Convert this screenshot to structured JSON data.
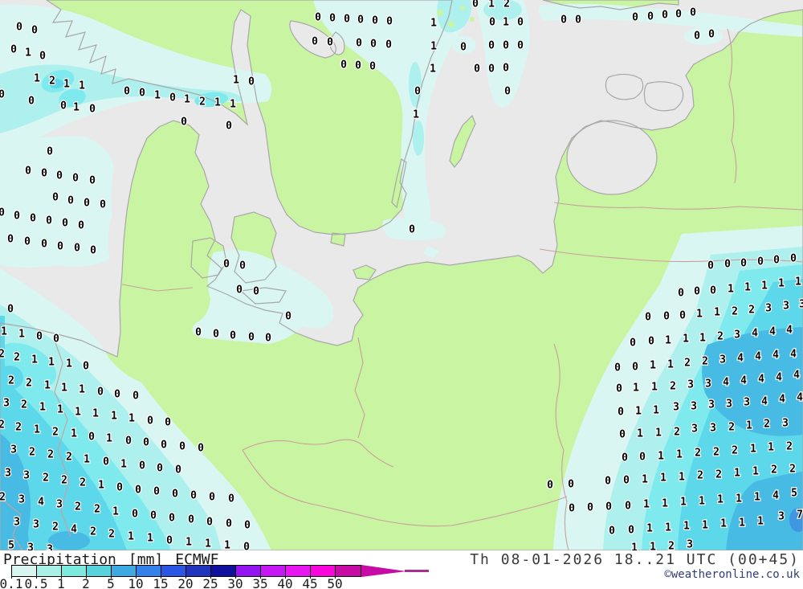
{
  "map": {
    "sea_color": "#e9e9e9",
    "land_color": "#c9f4a1",
    "coast_color": "#a8a8a8",
    "border_color": "#c9a0a0",
    "precip_levels": [
      {
        "range": "0.1-0.5",
        "color": "#d9f6f2"
      },
      {
        "range": "0.5-1",
        "color": "#aef0ee"
      },
      {
        "range": "1-2",
        "color": "#7feaee"
      },
      {
        "range": "2-5",
        "color": "#5cd8ea"
      },
      {
        "range": "5-10",
        "color": "#47bbe4"
      },
      {
        "range": "10-15",
        "color": "#3f96e2"
      }
    ],
    "values": [
      [
        24,
        33,
        "0"
      ],
      [
        43,
        37,
        "0"
      ],
      [
        17,
        61,
        "0"
      ],
      [
        35,
        65,
        "1"
      ],
      [
        53,
        69,
        "0"
      ],
      [
        46,
        97,
        "1"
      ],
      [
        65,
        100,
        "2"
      ],
      [
        83,
        104,
        "1"
      ],
      [
        102,
        106,
        "1"
      ],
      [
        294,
        99,
        "1"
      ],
      [
        313,
        101,
        "0"
      ],
      [
        2,
        117,
        "0"
      ],
      [
        39,
        125,
        "0"
      ],
      [
        79,
        131,
        "0"
      ],
      [
        95,
        133,
        "1"
      ],
      [
        115,
        135,
        "0"
      ],
      [
        158,
        113,
        "0"
      ],
      [
        177,
        115,
        "0"
      ],
      [
        196,
        118,
        "1"
      ],
      [
        215,
        121,
        "0"
      ],
      [
        233,
        123,
        "1"
      ],
      [
        252,
        126,
        "2"
      ],
      [
        271,
        127,
        "1"
      ],
      [
        290,
        129,
        "1"
      ],
      [
        229,
        151,
        "0"
      ],
      [
        285,
        156,
        "0"
      ],
      [
        62,
        188,
        "0"
      ],
      [
        35,
        212,
        "0"
      ],
      [
        55,
        215,
        "0"
      ],
      [
        74,
        218,
        "0"
      ],
      [
        94,
        221,
        "0"
      ],
      [
        115,
        224,
        "0"
      ],
      [
        592,
        4,
        "0"
      ],
      [
        612,
        4,
        "1"
      ],
      [
        631,
        4,
        "2"
      ],
      [
        396,
        21,
        "0"
      ],
      [
        414,
        22,
        "0"
      ],
      [
        432,
        23,
        "0"
      ],
      [
        449,
        24,
        "0"
      ],
      [
        467,
        25,
        "0"
      ],
      [
        485,
        26,
        "0"
      ],
      [
        540,
        28,
        "1"
      ],
      [
        613,
        27,
        "0"
      ],
      [
        630,
        27,
        "1"
      ],
      [
        648,
        27,
        "0"
      ],
      [
        392,
        51,
        "0"
      ],
      [
        411,
        52,
        "0"
      ],
      [
        447,
        53,
        "0"
      ],
      [
        465,
        54,
        "0"
      ],
      [
        484,
        55,
        "0"
      ],
      [
        540,
        57,
        "1"
      ],
      [
        577,
        58,
        "0"
      ],
      [
        612,
        56,
        "0"
      ],
      [
        630,
        56,
        "0"
      ],
      [
        648,
        56,
        "0"
      ],
      [
        428,
        80,
        "0"
      ],
      [
        446,
        81,
        "0"
      ],
      [
        464,
        82,
        "0"
      ],
      [
        539,
        85,
        "1"
      ],
      [
        594,
        85,
        "0"
      ],
      [
        612,
        85,
        "0"
      ],
      [
        630,
        84,
        "0"
      ],
      [
        520,
        113,
        "0"
      ],
      [
        632,
        113,
        "0"
      ],
      [
        518,
        142,
        "1"
      ],
      [
        702,
        24,
        "0"
      ],
      [
        720,
        24,
        "0"
      ],
      [
        791,
        21,
        "0"
      ],
      [
        810,
        20,
        "0"
      ],
      [
        828,
        18,
        "0"
      ],
      [
        845,
        17,
        "0"
      ],
      [
        863,
        15,
        "0"
      ],
      [
        868,
        44,
        "0"
      ],
      [
        886,
        42,
        "0"
      ],
      [
        69,
        245,
        "0"
      ],
      [
        88,
        249,
        "0"
      ],
      [
        108,
        252,
        "0"
      ],
      [
        128,
        254,
        "0"
      ],
      [
        2,
        264,
        "0"
      ],
      [
        21,
        268,
        "0"
      ],
      [
        41,
        271,
        "0"
      ],
      [
        61,
        274,
        "0"
      ],
      [
        81,
        277,
        "0"
      ],
      [
        101,
        280,
        "0"
      ],
      [
        13,
        297,
        "0"
      ],
      [
        34,
        300,
        "0"
      ],
      [
        55,
        303,
        "0"
      ],
      [
        75,
        306,
        "0"
      ],
      [
        96,
        308,
        "0"
      ],
      [
        116,
        311,
        "0"
      ],
      [
        282,
        328,
        "0"
      ],
      [
        302,
        330,
        "0"
      ],
      [
        298,
        360,
        "0"
      ],
      [
        319,
        362,
        "0"
      ],
      [
        13,
        384,
        "0"
      ],
      [
        5,
        412,
        "1"
      ],
      [
        27,
        415,
        "1"
      ],
      [
        49,
        418,
        "0"
      ],
      [
        70,
        421,
        "0"
      ],
      [
        247,
        413,
        "0"
      ],
      [
        269,
        415,
        "0"
      ],
      [
        290,
        417,
        "0"
      ],
      [
        313,
        419,
        "0"
      ],
      [
        334,
        420,
        "0"
      ],
      [
        2,
        440,
        "2"
      ],
      [
        21,
        444,
        "2"
      ],
      [
        43,
        447,
        "1"
      ],
      [
        64,
        450,
        "1"
      ],
      [
        86,
        452,
        "1"
      ],
      [
        107,
        455,
        "0"
      ],
      [
        513,
        285,
        "0"
      ],
      [
        359,
        393,
        "0"
      ],
      [
        885,
        330,
        "0"
      ],
      [
        906,
        328,
        "0"
      ],
      [
        926,
        327,
        "0"
      ],
      [
        947,
        325,
        "0"
      ],
      [
        967,
        323,
        "0"
      ],
      [
        988,
        321,
        "0"
      ],
      [
        848,
        364,
        "0"
      ],
      [
        868,
        362,
        "0"
      ],
      [
        888,
        361,
        "0"
      ],
      [
        910,
        359,
        "1"
      ],
      [
        931,
        357,
        "1"
      ],
      [
        952,
        355,
        "1"
      ],
      [
        973,
        352,
        "1"
      ],
      [
        994,
        350,
        "1"
      ],
      [
        807,
        394,
        "0"
      ],
      [
        830,
        393,
        "0"
      ],
      [
        850,
        392,
        "0"
      ],
      [
        871,
        390,
        "1"
      ],
      [
        893,
        388,
        "1"
      ],
      [
        915,
        387,
        "2"
      ],
      [
        936,
        385,
        "2"
      ],
      [
        957,
        383,
        "3"
      ],
      [
        979,
        380,
        "3"
      ],
      [
        999,
        378,
        "3"
      ],
      [
        788,
        426,
        "0"
      ],
      [
        811,
        424,
        "0"
      ],
      [
        832,
        423,
        "1"
      ],
      [
        854,
        421,
        "1"
      ],
      [
        875,
        420,
        "1"
      ],
      [
        897,
        418,
        "2"
      ],
      [
        918,
        416,
        "3"
      ],
      [
        940,
        414,
        "4"
      ],
      [
        962,
        412,
        "4"
      ],
      [
        983,
        410,
        "4"
      ],
      [
        769,
        457,
        "0"
      ],
      [
        791,
        456,
        "0"
      ],
      [
        813,
        454,
        "1"
      ],
      [
        835,
        453,
        "1"
      ],
      [
        856,
        451,
        "2"
      ],
      [
        878,
        449,
        "2"
      ],
      [
        900,
        447,
        "3"
      ],
      [
        922,
        445,
        "4"
      ],
      [
        944,
        443,
        "4"
      ],
      [
        966,
        441,
        "4"
      ],
      [
        988,
        440,
        "4"
      ],
      [
        14,
        473,
        "2"
      ],
      [
        36,
        476,
        "2"
      ],
      [
        59,
        479,
        "1"
      ],
      [
        80,
        482,
        "1"
      ],
      [
        102,
        484,
        "1"
      ],
      [
        125,
        487,
        "0"
      ],
      [
        146,
        490,
        "0"
      ],
      [
        169,
        492,
        "0"
      ],
      [
        8,
        501,
        "3"
      ],
      [
        30,
        503,
        "2"
      ],
      [
        53,
        506,
        "1"
      ],
      [
        75,
        509,
        "1"
      ],
      [
        97,
        512,
        "1"
      ],
      [
        119,
        514,
        "1"
      ],
      [
        142,
        517,
        "1"
      ],
      [
        164,
        520,
        "1"
      ],
      [
        187,
        523,
        "0"
      ],
      [
        209,
        525,
        "0"
      ],
      [
        2,
        528,
        "2"
      ],
      [
        23,
        531,
        "2"
      ],
      [
        46,
        534,
        "1"
      ],
      [
        69,
        537,
        "2"
      ],
      [
        92,
        539,
        "1"
      ],
      [
        114,
        543,
        "0"
      ],
      [
        136,
        545,
        "1"
      ],
      [
        160,
        548,
        "0"
      ],
      [
        182,
        550,
        "0"
      ],
      [
        204,
        553,
        "0"
      ],
      [
        227,
        555,
        "0"
      ],
      [
        250,
        557,
        "0"
      ],
      [
        17,
        559,
        "3"
      ],
      [
        40,
        562,
        "2"
      ],
      [
        63,
        565,
        "2"
      ],
      [
        86,
        568,
        "2"
      ],
      [
        108,
        571,
        "1"
      ],
      [
        132,
        574,
        "0"
      ],
      [
        154,
        577,
        "1"
      ],
      [
        177,
        579,
        "0"
      ],
      [
        199,
        582,
        "0"
      ],
      [
        222,
        584,
        "0"
      ],
      [
        10,
        588,
        "3"
      ],
      [
        33,
        591,
        "3"
      ],
      [
        57,
        594,
        "2"
      ],
      [
        80,
        597,
        "2"
      ],
      [
        103,
        600,
        "2"
      ],
      [
        126,
        603,
        "1"
      ],
      [
        149,
        606,
        "0"
      ],
      [
        172,
        609,
        "0"
      ],
      [
        195,
        611,
        "0"
      ],
      [
        218,
        614,
        "0"
      ],
      [
        241,
        616,
        "0"
      ],
      [
        264,
        618,
        "0"
      ],
      [
        288,
        620,
        "0"
      ],
      [
        3,
        618,
        "2"
      ],
      [
        27,
        621,
        "3"
      ],
      [
        51,
        624,
        "4"
      ],
      [
        74,
        627,
        "3"
      ],
      [
        97,
        630,
        "2"
      ],
      [
        121,
        633,
        "2"
      ],
      [
        144,
        636,
        "1"
      ],
      [
        168,
        639,
        "0"
      ],
      [
        191,
        641,
        "0"
      ],
      [
        214,
        644,
        "0"
      ],
      [
        238,
        646,
        "0"
      ],
      [
        261,
        649,
        "0"
      ],
      [
        285,
        651,
        "0"
      ],
      [
        308,
        653,
        "0"
      ],
      [
        21,
        649,
        "3"
      ],
      [
        45,
        652,
        "3"
      ],
      [
        69,
        655,
        "2"
      ],
      [
        92,
        658,
        "4"
      ],
      [
        116,
        661,
        "2"
      ],
      [
        139,
        664,
        "2"
      ],
      [
        163,
        667,
        "1"
      ],
      [
        187,
        669,
        "1"
      ],
      [
        211,
        672,
        "0"
      ],
      [
        235,
        674,
        "1"
      ],
      [
        259,
        676,
        "1"
      ],
      [
        283,
        678,
        "1"
      ],
      [
        307,
        680,
        "0"
      ],
      [
        14,
        678,
        "5"
      ],
      [
        38,
        681,
        "3"
      ],
      [
        62,
        683,
        "3"
      ],
      [
        771,
        483,
        "0"
      ],
      [
        792,
        482,
        "1"
      ],
      [
        815,
        481,
        "1"
      ],
      [
        838,
        480,
        "2"
      ],
      [
        860,
        478,
        "3"
      ],
      [
        882,
        477,
        "3"
      ],
      [
        904,
        475,
        "4"
      ],
      [
        926,
        473,
        "4"
      ],
      [
        948,
        471,
        "4"
      ],
      [
        970,
        469,
        "4"
      ],
      [
        992,
        466,
        "4"
      ],
      [
        773,
        512,
        "0"
      ],
      [
        795,
        511,
        "1"
      ],
      [
        817,
        510,
        "1"
      ],
      [
        842,
        506,
        "3"
      ],
      [
        864,
        505,
        "3"
      ],
      [
        886,
        503,
        "3"
      ],
      [
        908,
        502,
        "3"
      ],
      [
        930,
        500,
        "3"
      ],
      [
        952,
        499,
        "4"
      ],
      [
        974,
        496,
        "4"
      ],
      [
        996,
        494,
        "4"
      ],
      [
        775,
        540,
        "0"
      ],
      [
        797,
        539,
        "1"
      ],
      [
        820,
        538,
        "1"
      ],
      [
        843,
        537,
        "2"
      ],
      [
        865,
        533,
        "3"
      ],
      [
        888,
        532,
        "3"
      ],
      [
        911,
        531,
        "2"
      ],
      [
        933,
        529,
        "1"
      ],
      [
        955,
        527,
        "2"
      ],
      [
        978,
        526,
        "3"
      ],
      [
        778,
        569,
        "0"
      ],
      [
        800,
        568,
        "0"
      ],
      [
        823,
        567,
        "1"
      ],
      [
        846,
        565,
        "1"
      ],
      [
        869,
        563,
        "2"
      ],
      [
        892,
        562,
        "2"
      ],
      [
        915,
        560,
        "2"
      ],
      [
        938,
        558,
        "1"
      ],
      [
        960,
        556,
        "1"
      ],
      [
        983,
        555,
        "2"
      ],
      [
        685,
        603,
        "0"
      ],
      [
        711,
        602,
        "0"
      ],
      [
        757,
        598,
        "0"
      ],
      [
        780,
        597,
        "0"
      ],
      [
        803,
        596,
        "1"
      ],
      [
        826,
        594,
        "1"
      ],
      [
        849,
        593,
        "1"
      ],
      [
        872,
        591,
        "2"
      ],
      [
        895,
        590,
        "2"
      ],
      [
        918,
        588,
        "1"
      ],
      [
        941,
        586,
        "1"
      ],
      [
        964,
        584,
        "2"
      ],
      [
        987,
        583,
        "2"
      ],
      [
        712,
        632,
        "0"
      ],
      [
        735,
        631,
        "0"
      ],
      [
        758,
        630,
        "0"
      ],
      [
        782,
        629,
        "0"
      ],
      [
        805,
        627,
        "1"
      ],
      [
        828,
        626,
        "1"
      ],
      [
        851,
        624,
        "1"
      ],
      [
        874,
        623,
        "1"
      ],
      [
        897,
        621,
        "1"
      ],
      [
        920,
        620,
        "1"
      ],
      [
        943,
        618,
        "1"
      ],
      [
        966,
        616,
        "4"
      ],
      [
        989,
        613,
        "5"
      ],
      [
        762,
        660,
        "0"
      ],
      [
        786,
        659,
        "0"
      ],
      [
        809,
        657,
        "1"
      ],
      [
        832,
        656,
        "1"
      ],
      [
        855,
        654,
        "1"
      ],
      [
        878,
        653,
        "1"
      ],
      [
        901,
        651,
        "1"
      ],
      [
        924,
        650,
        "1"
      ],
      [
        947,
        648,
        "1"
      ],
      [
        973,
        642,
        "3"
      ],
      [
        996,
        640,
        "7"
      ],
      [
        790,
        681,
        "1"
      ],
      [
        813,
        680,
        "1"
      ],
      [
        836,
        679,
        "2"
      ],
      [
        859,
        677,
        "3"
      ]
    ]
  },
  "footer": {
    "title_precip": "Precipitation",
    "title_units": "[mm]",
    "title_model": "ECMWF",
    "datetime": "Th 08-01-2026 18..21 UTC (00+45)",
    "copyright": "©weatheronline.co.uk",
    "scale": {
      "labels": [
        "0.1",
        "0.5",
        "1",
        "2",
        "5",
        "10",
        "15",
        "20",
        "25",
        "30",
        "35",
        "40",
        "45",
        "50"
      ],
      "colors": [
        "#d8f5f0",
        "#a9f1e7",
        "#7deade",
        "#58d3dd",
        "#3fa9e2",
        "#3381e9",
        "#2956e2",
        "#2134bd",
        "#10109e",
        "#9414f2",
        "#c518f4",
        "#e816f0",
        "#fa06dd",
        "#c70ba4"
      ],
      "arrow_color": "#c70ba4",
      "tail_color": "#a83090"
    }
  }
}
